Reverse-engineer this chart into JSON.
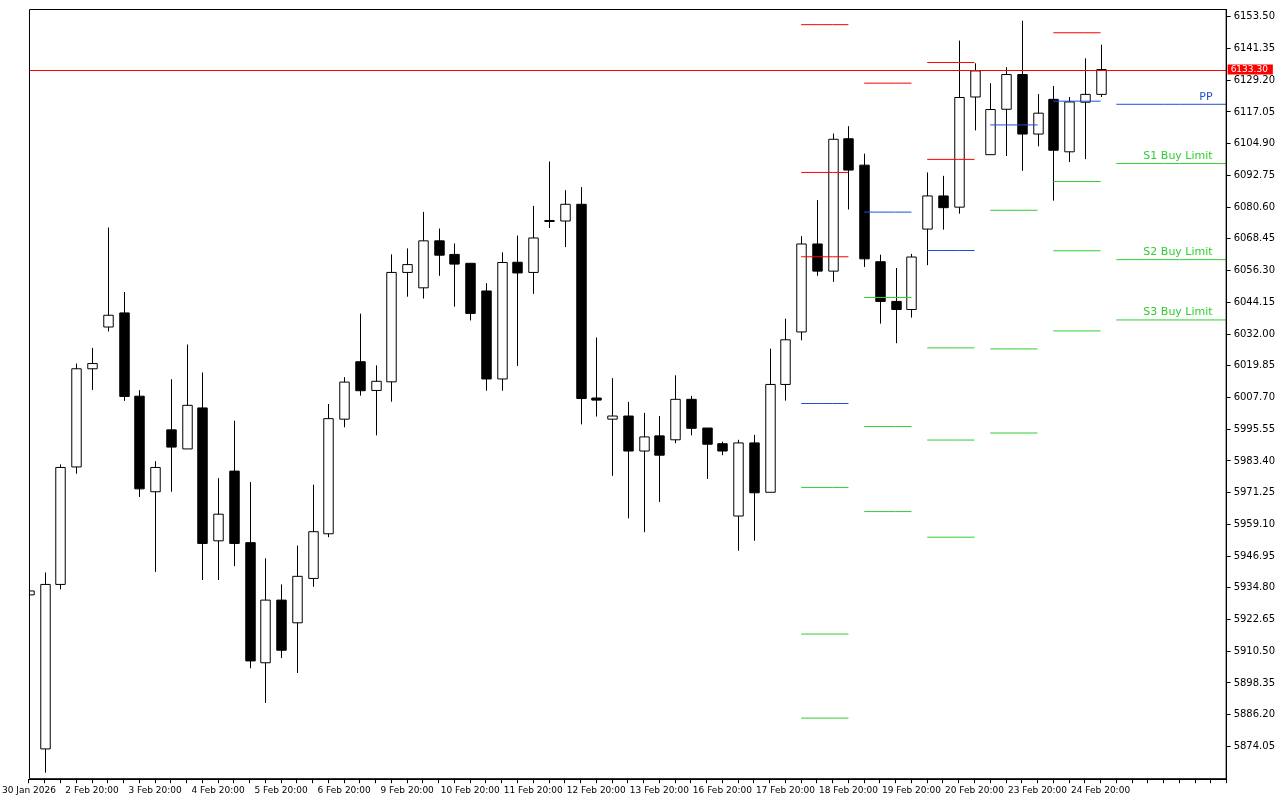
{
  "chart_data": {
    "type": "candlestick",
    "categories": [
      "30 Jan 2026",
      null,
      null,
      null,
      "2 Feb 20:00",
      null,
      null,
      null,
      "3 Feb 20:00",
      null,
      null,
      null,
      "4 Feb 20:00",
      null,
      null,
      null,
      "5 Feb 20:00",
      null,
      null,
      null,
      "6 Feb 20:00",
      null,
      null,
      null,
      "9 Feb 20:00",
      null,
      null,
      null,
      "10 Feb 20:00",
      null,
      null,
      null,
      "11 Feb 20:00",
      null,
      null,
      null,
      "12 Feb 20:00",
      null,
      null,
      null,
      "13 Feb 20:00",
      null,
      null,
      null,
      "16 Feb 20:00",
      null,
      null,
      null,
      "17 Feb 20:00",
      null,
      null,
      null,
      "18 Feb 20:00",
      null,
      null,
      null,
      "19 Feb 20:00",
      null,
      null,
      null,
      "20 Feb 20:00",
      null,
      null,
      null,
      "23 Feb 20:00",
      null,
      null,
      null,
      "24 Feb 20:00",
      null,
      null,
      null,
      null,
      null,
      null,
      null,
      null
    ],
    "ohlc": [
      [
        5932.1,
        5933.6,
        5932.1,
        5933.6
      ],
      [
        5873.1,
        5940.7,
        5864.0,
        5936.1
      ],
      [
        5936.1,
        5982.1,
        5934.2,
        5980.9
      ],
      [
        5981.1,
        6020.7,
        5978.5,
        6018.7
      ],
      [
        6018.7,
        6026.7,
        6010.6,
        6020.7
      ],
      [
        6034.7,
        6072.8,
        6033.0,
        6039.2
      ],
      [
        6040.1,
        6048.1,
        6006.4,
        6008.1
      ],
      [
        6008.2,
        6010.5,
        5969.6,
        5972.7
      ],
      [
        5971.6,
        5983.3,
        5940.9,
        5980.9
      ],
      [
        5995.3,
        6014.7,
        5971.6,
        5988.7
      ],
      [
        5988.0,
        6028.0,
        5988.0,
        6004.7
      ],
      [
        6003.7,
        6017.3,
        5937.8,
        5951.8
      ],
      [
        5952.8,
        5976.8,
        5937.8,
        5963.0
      ],
      [
        5979.5,
        5998.8,
        5943.1,
        5951.8
      ],
      [
        5952.1,
        5975.3,
        5904.0,
        5906.8
      ],
      [
        5906.1,
        5946.1,
        5890.7,
        5930.1
      ],
      [
        5930.1,
        5936.1,
        5907.9,
        5910.9
      ],
      [
        5921.4,
        5951.0,
        5902.2,
        5939.2
      ],
      [
        5938.4,
        5974.3,
        5935.2,
        5956.3
      ],
      [
        5955.5,
        6005.2,
        5954.2,
        5999.6
      ],
      [
        5999.4,
        6015.5,
        5996.3,
        6013.6
      ],
      [
        6021.4,
        6039.8,
        6008.4,
        6010.3
      ],
      [
        6010.4,
        6020.0,
        5993.2,
        6013.9
      ],
      [
        6013.7,
        6062.5,
        6006.1,
        6055.6
      ],
      [
        6055.6,
        6064.8,
        6046.3,
        6058.6
      ],
      [
        6049.7,
        6078.8,
        6045.6,
        6067.7
      ],
      [
        6067.7,
        6072.4,
        6054.3,
        6062.2
      ],
      [
        6062.5,
        6066.7,
        6042.5,
        6058.8
      ],
      [
        6059.1,
        6059.1,
        6037.2,
        6039.9
      ],
      [
        6048.5,
        6051.5,
        6010.3,
        6014.8
      ],
      [
        6014.8,
        6063.3,
        6010.3,
        6059.4
      ],
      [
        6059.5,
        6069.7,
        6019.8,
        6055.4
      ],
      [
        6055.6,
        6081.1,
        6047.4,
        6068.8
      ],
      [
        6075.5,
        6098.1,
        6072.6,
        6075.3
      ],
      [
        6075.3,
        6087.1,
        6065.3,
        6081.7
      ],
      [
        6081.7,
        6088.3,
        5997.4,
        6007.3
      ],
      [
        6007.5,
        6030.7,
        6000.4,
        6006.7
      ],
      [
        5999.4,
        6015.1,
        5977.7,
        6000.6
      ],
      [
        6000.6,
        6006.0,
        5961.4,
        5987.2
      ],
      [
        5987.2,
        6001.8,
        5956.1,
        5992.6
      ],
      [
        5993.0,
        6000.6,
        5967.7,
        5985.6
      ],
      [
        5991.5,
        6016.2,
        5990.2,
        6007.0
      ],
      [
        6007.0,
        6008.3,
        5993.2,
        5995.9
      ],
      [
        5996.0,
        5996.0,
        5976.5,
        5989.8
      ],
      [
        5990.0,
        5990.8,
        5985.6,
        5987.2
      ],
      [
        5962.3,
        5991.5,
        5949.0,
        5990.3
      ],
      [
        5990.3,
        5993.4,
        5952.8,
        5971.2
      ],
      [
        5971.4,
        6026.4,
        5971.4,
        6012.7
      ],
      [
        6012.7,
        6037.9,
        6006.5,
        6029.8
      ],
      [
        6032.8,
        6069.5,
        6029.6,
        6066.5
      ],
      [
        6066.5,
        6083.3,
        6054.3,
        6056.1
      ],
      [
        6056.1,
        6108.8,
        6052.0,
        6106.6
      ],
      [
        6106.8,
        6111.6,
        6079.7,
        6094.8
      ],
      [
        6096.7,
        6101.1,
        6057.7,
        6060.8
      ],
      [
        6059.7,
        6062.4,
        6036.0,
        6044.5
      ],
      [
        6044.5,
        6057.3,
        6028.5,
        6041.4
      ],
      [
        6041.4,
        6062.7,
        6038.3,
        6061.5
      ],
      [
        6072.2,
        6093.9,
        6058.4,
        6084.9
      ],
      [
        6084.9,
        6092.6,
        6072.0,
        6080.4
      ],
      [
        6080.6,
        6144.4,
        6078.1,
        6122.6
      ],
      [
        6122.8,
        6135.7,
        6110.0,
        6132.8
      ],
      [
        6100.7,
        6128.1,
        6100.7,
        6118.0
      ],
      [
        6118.1,
        6134.2,
        6100.2,
        6131.4
      ],
      [
        6131.4,
        6152.0,
        6094.5,
        6108.6
      ],
      [
        6108.6,
        6123.9,
        6103.9,
        6116.6
      ],
      [
        6121.9,
        6127.0,
        6083.1,
        6102.4
      ],
      [
        6101.8,
        6122.8,
        6097.9,
        6120.9
      ],
      [
        6120.8,
        6137.6,
        6099.0,
        6123.8
      ],
      [
        6123.8,
        6142.8,
        6122.8,
        6133.3
      ],
      null,
      null,
      null,
      null,
      null,
      null,
      null,
      null
    ],
    "series": [
      {
        "type": "line",
        "color": "#ff0000",
        "values": [
          null,
          null,
          null,
          null,
          null,
          null,
          null,
          null,
          null,
          null,
          null,
          null,
          null,
          null,
          null,
          null,
          null,
          null,
          null,
          null,
          null,
          null,
          null,
          null,
          null,
          null,
          null,
          null,
          null,
          null,
          null,
          null,
          null,
          null,
          null,
          null,
          null,
          null,
          null,
          null,
          null,
          null,
          null,
          null,
          null,
          null,
          null,
          null,
          null,
          6150.5,
          6150.5,
          6150.5,
          6150.5,
          null,
          null,
          null,
          null,
          6136.0,
          6136.0,
          6136.0,
          6136.0,
          null,
          null,
          null,
          null,
          6147.4,
          6147.4,
          6147.4,
          6147.4,
          null,
          null,
          null,
          null,
          null,
          null,
          null,
          null
        ]
      },
      {
        "type": "line",
        "color": "#ff0000",
        "values": [
          null,
          null,
          null,
          null,
          null,
          null,
          null,
          null,
          null,
          null,
          null,
          null,
          null,
          null,
          null,
          null,
          null,
          null,
          null,
          null,
          null,
          null,
          null,
          null,
          null,
          null,
          null,
          null,
          null,
          null,
          null,
          null,
          null,
          null,
          null,
          null,
          null,
          null,
          null,
          null,
          null,
          null,
          null,
          null,
          null,
          null,
          null,
          null,
          null,
          6093.9,
          6093.9,
          6093.9,
          6093.9,
          null,
          null,
          null,
          null,
          6098.9,
          6098.9,
          6098.9,
          6098.9,
          null,
          null,
          null,
          null,
          null,
          null,
          null,
          null,
          null,
          null,
          null,
          null,
          null,
          null,
          null,
          null
        ]
      },
      {
        "type": "line",
        "color": "#ff0000",
        "values": [
          null,
          null,
          null,
          null,
          null,
          null,
          null,
          null,
          null,
          null,
          null,
          null,
          null,
          null,
          null,
          null,
          null,
          null,
          null,
          null,
          null,
          null,
          null,
          null,
          null,
          null,
          null,
          null,
          null,
          null,
          null,
          null,
          null,
          null,
          null,
          null,
          null,
          null,
          null,
          null,
          null,
          null,
          null,
          null,
          null,
          null,
          null,
          null,
          null,
          6061.6,
          6061.6,
          6061.6,
          6061.6,
          null,
          null,
          null,
          null,
          null,
          null,
          null,
          null,
          null,
          null,
          null,
          null,
          null,
          null,
          null,
          null,
          null,
          null,
          null,
          null,
          null,
          null,
          null,
          null
        ]
      },
      {
        "type": "line",
        "color": "#1f4fd8",
        "values": [
          null,
          null,
          null,
          null,
          null,
          null,
          null,
          null,
          null,
          null,
          null,
          null,
          null,
          null,
          null,
          null,
          null,
          null,
          null,
          null,
          null,
          null,
          null,
          null,
          null,
          null,
          null,
          null,
          null,
          null,
          null,
          null,
          null,
          null,
          null,
          null,
          null,
          null,
          null,
          null,
          null,
          null,
          null,
          null,
          null,
          null,
          null,
          null,
          null,
          6005.4,
          6005.4,
          6005.4,
          6005.4,
          null,
          null,
          null,
          null,
          6064.0,
          6064.0,
          6064.0,
          6064.0,
          null,
          null,
          null,
          null,
          6121.2,
          6121.2,
          6121.2,
          6121.2,
          null,
          null,
          null,
          null,
          null,
          null,
          null,
          null
        ]
      },
      {
        "type": "line",
        "color": "#32cd32",
        "values": [
          null,
          null,
          null,
          null,
          null,
          null,
          null,
          null,
          null,
          null,
          null,
          null,
          null,
          null,
          null,
          null,
          null,
          null,
          null,
          null,
          null,
          null,
          null,
          null,
          null,
          null,
          null,
          null,
          null,
          null,
          null,
          null,
          null,
          null,
          null,
          null,
          null,
          null,
          null,
          null,
          null,
          null,
          null,
          null,
          null,
          null,
          null,
          null,
          null,
          5973.2,
          5973.2,
          5973.2,
          5973.2,
          null,
          null,
          null,
          null,
          6026.7,
          6026.7,
          6026.7,
          6026.7,
          null,
          null,
          null,
          null,
          6090.4,
          6090.4,
          6090.4,
          6090.4,
          null,
          null,
          null,
          null,
          null,
          null,
          null,
          null
        ]
      },
      {
        "type": "line",
        "color": "#32cd32",
        "values": [
          null,
          null,
          null,
          null,
          null,
          null,
          null,
          null,
          null,
          null,
          null,
          null,
          null,
          null,
          null,
          null,
          null,
          null,
          null,
          null,
          null,
          null,
          null,
          null,
          null,
          null,
          null,
          null,
          null,
          null,
          null,
          null,
          null,
          null,
          null,
          null,
          null,
          null,
          null,
          null,
          null,
          null,
          null,
          null,
          null,
          null,
          null,
          null,
          null,
          5917.1,
          5917.1,
          5917.1,
          5917.1,
          null,
          null,
          null,
          null,
          5991.4,
          5991.4,
          5991.4,
          5991.4,
          null,
          null,
          null,
          null,
          6063.9,
          6063.9,
          6063.9,
          6063.9,
          null,
          null,
          null,
          null,
          null,
          null,
          null,
          null
        ]
      },
      {
        "type": "line",
        "color": "#32cd32",
        "values": [
          null,
          null,
          null,
          null,
          null,
          null,
          null,
          null,
          null,
          null,
          null,
          null,
          null,
          null,
          null,
          null,
          null,
          null,
          null,
          null,
          null,
          null,
          null,
          null,
          null,
          null,
          null,
          null,
          null,
          null,
          null,
          null,
          null,
          null,
          null,
          null,
          null,
          null,
          null,
          null,
          null,
          null,
          null,
          null,
          null,
          null,
          null,
          null,
          null,
          5884.9,
          5884.9,
          5884.9,
          5884.9,
          null,
          null,
          null,
          null,
          5954.2,
          5954.2,
          5954.2,
          5954.2,
          null,
          null,
          null,
          null,
          6033.2,
          6033.2,
          6033.2,
          6033.2,
          null,
          null,
          null,
          null,
          null,
          null,
          null,
          null
        ]
      },
      {
        "type": "line",
        "color": "#ff0000",
        "values": [
          null,
          null,
          null,
          null,
          null,
          null,
          null,
          null,
          null,
          null,
          null,
          null,
          null,
          null,
          null,
          null,
          null,
          null,
          null,
          null,
          null,
          null,
          null,
          null,
          null,
          null,
          null,
          null,
          null,
          null,
          null,
          null,
          null,
          null,
          null,
          null,
          null,
          null,
          null,
          null,
          null,
          null,
          null,
          null,
          null,
          null,
          null,
          null,
          null,
          null,
          null,
          null,
          null,
          6128.1,
          6128.1,
          6128.1,
          6128.1,
          null,
          null,
          null,
          null,
          null,
          null,
          null,
          null,
          null,
          null,
          null,
          null,
          null,
          null,
          null,
          null,
          null,
          null,
          null,
          null
        ]
      },
      {
        "type": "line",
        "color": "#1f4fd8",
        "values": [
          null,
          null,
          null,
          null,
          null,
          null,
          null,
          null,
          null,
          null,
          null,
          null,
          null,
          null,
          null,
          null,
          null,
          null,
          null,
          null,
          null,
          null,
          null,
          null,
          null,
          null,
          null,
          null,
          null,
          null,
          null,
          null,
          null,
          null,
          null,
          null,
          null,
          null,
          null,
          null,
          null,
          null,
          null,
          null,
          null,
          null,
          null,
          null,
          null,
          null,
          null,
          null,
          null,
          6078.7,
          6078.7,
          6078.7,
          6078.7,
          null,
          null,
          null,
          null,
          6112.1,
          6112.1,
          6112.1,
          6112.1,
          null,
          null,
          null,
          null,
          6120.0,
          6120.0,
          6120.0,
          6120.0,
          6120.0,
          6120.0,
          6120.0,
          6120.0
        ]
      },
      {
        "type": "line",
        "color": "#32cd32",
        "values": [
          null,
          null,
          null,
          null,
          null,
          null,
          null,
          null,
          null,
          null,
          null,
          null,
          null,
          null,
          null,
          null,
          null,
          null,
          null,
          null,
          null,
          null,
          null,
          null,
          null,
          null,
          null,
          null,
          null,
          null,
          null,
          null,
          null,
          null,
          null,
          null,
          null,
          null,
          null,
          null,
          null,
          null,
          null,
          null,
          null,
          null,
          null,
          null,
          null,
          null,
          null,
          null,
          null,
          6046.0,
          6046.0,
          6046.0,
          6046.0,
          null,
          null,
          null,
          null,
          6079.4,
          6079.4,
          6079.4,
          6079.4,
          null,
          null,
          null,
          null,
          6097.3,
          6097.3,
          6097.3,
          6097.3,
          6097.3,
          6097.3,
          6097.3,
          6097.3
        ]
      },
      {
        "type": "line",
        "color": "#32cd32",
        "values": [
          null,
          null,
          null,
          null,
          null,
          null,
          null,
          null,
          null,
          null,
          null,
          null,
          null,
          null,
          null,
          null,
          null,
          null,
          null,
          null,
          null,
          null,
          null,
          null,
          null,
          null,
          null,
          null,
          null,
          null,
          null,
          null,
          null,
          null,
          null,
          null,
          null,
          null,
          null,
          null,
          null,
          null,
          null,
          null,
          null,
          null,
          null,
          null,
          null,
          null,
          null,
          null,
          null,
          5996.6,
          5996.6,
          5996.6,
          5996.6,
          null,
          null,
          null,
          null,
          6026.3,
          6026.3,
          6026.3,
          6026.3,
          null,
          null,
          null,
          null,
          6060.5,
          6060.5,
          6060.5,
          6060.5,
          6060.5,
          6060.5,
          6060.5,
          6060.5
        ]
      },
      {
        "type": "line",
        "color": "#32cd32",
        "values": [
          null,
          null,
          null,
          null,
          null,
          null,
          null,
          null,
          null,
          null,
          null,
          null,
          null,
          null,
          null,
          null,
          null,
          null,
          null,
          null,
          null,
          null,
          null,
          null,
          null,
          null,
          null,
          null,
          null,
          null,
          null,
          null,
          null,
          null,
          null,
          null,
          null,
          null,
          null,
          null,
          null,
          null,
          null,
          null,
          null,
          null,
          null,
          null,
          null,
          null,
          null,
          null,
          null,
          5964.0,
          5964.0,
          5964.0,
          5964.0,
          null,
          null,
          null,
          null,
          5994.1,
          5994.1,
          5994.1,
          5994.1,
          null,
          null,
          null,
          null,
          6037.4,
          6037.4,
          6037.4,
          6037.4,
          6037.4,
          6037.4,
          6037.4,
          6037.4
        ]
      }
    ],
    "ylim": [
      5861.5,
      6156.5
    ],
    "yticks": [
      {
        "value": 6153.5,
        "label": "6153.50"
      },
      {
        "value": 6141.35,
        "label": "6141.35"
      },
      {
        "value": 6129.2,
        "label": "6129.20"
      },
      {
        "value": 6117.05,
        "label": "6117.05"
      },
      {
        "value": 6104.9,
        "label": "6104.90"
      },
      {
        "value": 6092.75,
        "label": "6092.75"
      },
      {
        "value": 6080.6,
        "label": "6080.60"
      },
      {
        "value": 6068.45,
        "label": "6068.45"
      },
      {
        "value": 6056.3,
        "label": "6056.30"
      },
      {
        "value": 6044.15,
        "label": "6044.15"
      },
      {
        "value": 6032.0,
        "label": "6032.00"
      },
      {
        "value": 6019.85,
        "label": "6019.85"
      },
      {
        "value": 6007.7,
        "label": "6007.70"
      },
      {
        "value": 5995.55,
        "label": "5995.55"
      },
      {
        "value": 5983.4,
        "label": "5983.40"
      },
      {
        "value": 5971.25,
        "label": "5971.25"
      },
      {
        "value": 5959.1,
        "label": "5959.10"
      },
      {
        "value": 5946.95,
        "label": "5946.95"
      },
      {
        "value": 5934.8,
        "label": "5934.80"
      },
      {
        "value": 5922.65,
        "label": "5922.65"
      },
      {
        "value": 5910.5,
        "label": "5910.50"
      },
      {
        "value": 5898.35,
        "label": "5898.35"
      },
      {
        "value": 5886.2,
        "label": "5886.20"
      },
      {
        "value": 5874.05,
        "label": "5874.05"
      }
    ],
    "ref_lines": [
      {
        "axis": "y",
        "value": 6133.3,
        "label": "6133.30",
        "color": "#ff0000"
      }
    ],
    "annotations": [
      {
        "text": "PP",
        "y": 6120.0
      },
      {
        "text": "S1 Buy Limit",
        "y": 6097.3
      },
      {
        "text": "S2 Buy Limit",
        "y": 6060.5
      },
      {
        "text": "S3 Buy Limit",
        "y": 6037.4
      }
    ],
    "grid": false,
    "legend": false
  }
}
